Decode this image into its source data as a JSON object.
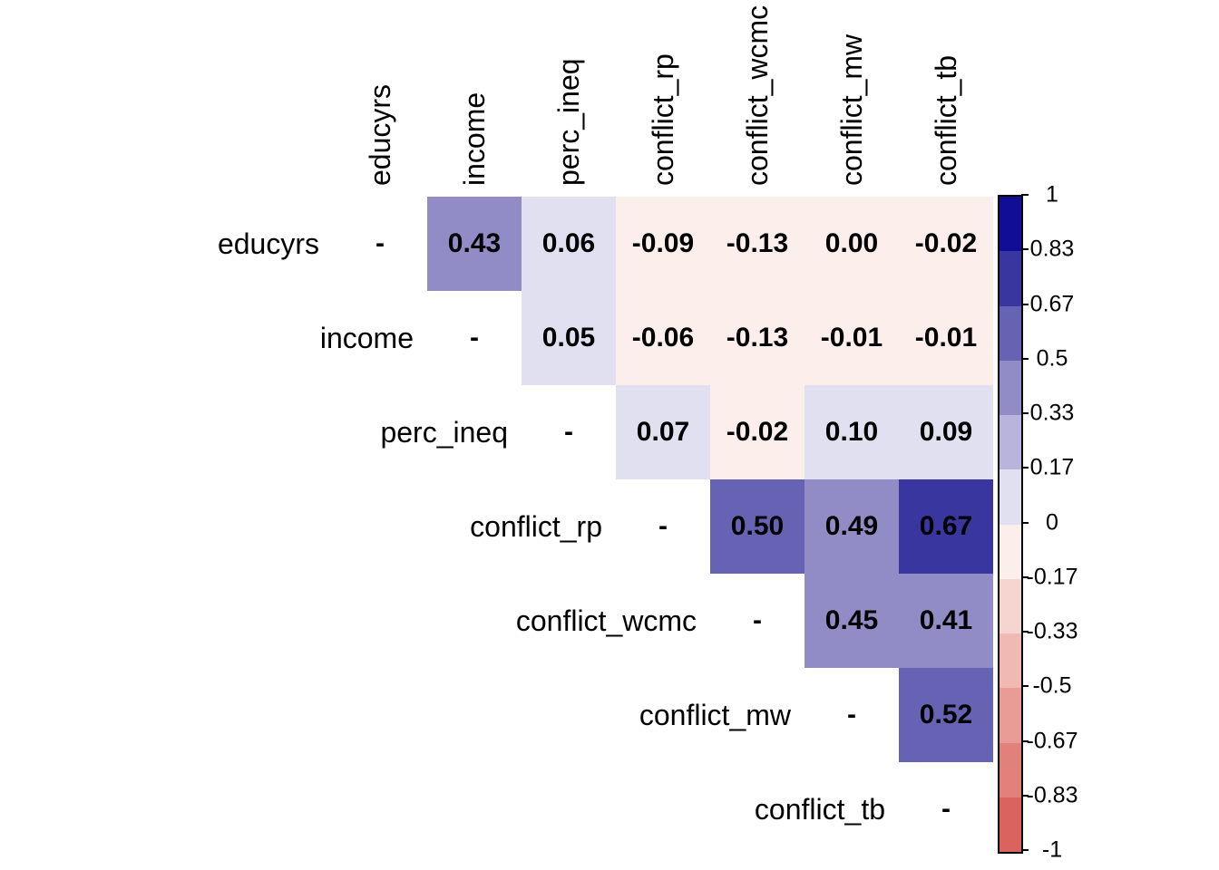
{
  "figure": {
    "background_color": "#ffffff",
    "text_color": "#000000"
  },
  "chart_data": {
    "type": "heatmap",
    "subtype": "correlation-matrix-upper-triangle",
    "title": "",
    "variables": [
      "educyrs",
      "income",
      "perc_ineq",
      "conflict_rp",
      "conflict_wcmc",
      "conflict_mw",
      "conflict_tb"
    ],
    "diagonal_label": "-",
    "value_decimals": 2,
    "matrix": [
      [
        null,
        0.43,
        0.06,
        -0.09,
        -0.13,
        0.0,
        -0.02
      ],
      [
        null,
        null,
        0.05,
        -0.06,
        -0.13,
        -0.01,
        -0.01
      ],
      [
        null,
        null,
        null,
        0.07,
        -0.02,
        0.1,
        0.09
      ],
      [
        null,
        null,
        null,
        null,
        0.5,
        0.49,
        0.67
      ],
      [
        null,
        null,
        null,
        null,
        null,
        0.45,
        0.41
      ],
      [
        null,
        null,
        null,
        null,
        null,
        null,
        0.52
      ],
      [
        null,
        null,
        null,
        null,
        null,
        null,
        null
      ]
    ],
    "legend": {
      "position": "right",
      "range": [
        -1,
        1
      ],
      "tick_labels": [
        "1",
        "0.83",
        "0.67",
        "0.5",
        "0.33",
        "0.17",
        "0",
        "-0.17",
        "-0.33",
        "-0.5",
        "-0.67",
        "-0.83",
        "-1"
      ],
      "segment_colors_top_to_bottom": [
        "#120d96",
        "#39369f",
        "#6663b5",
        "#918bc6",
        "#b8b4db",
        "#e1e0f1",
        "#fceeeb",
        "#f6d4d0",
        "#f0b9b3",
        "#e99c96",
        "#e2817b",
        "#db635d"
      ],
      "border_color": "#000000",
      "tick_color": "#000000"
    },
    "grid": false,
    "cell_text_style": "bold black"
  }
}
